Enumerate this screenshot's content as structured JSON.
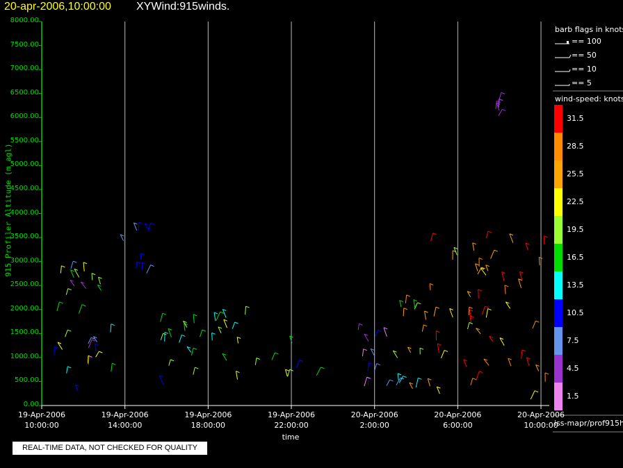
{
  "header": {
    "date_time": "20-apr-2006,10:00:00",
    "product": "XYWind:915winds."
  },
  "notice": "REAL-TIME DATA, NOT CHECKED FOR QUALITY",
  "legend": {
    "flags_title": "barb flags in knots",
    "flags": [
      "== 100",
      "== 50",
      "== 10",
      "== 5"
    ],
    "speed_title": "wind-speed: knots",
    "speed_colors": [
      "#ee82ee",
      "#9a32cd",
      "#6495ed",
      "#0000ff",
      "#00ffff",
      "#00dd00",
      "#9aff32",
      "#ffff00",
      "#ffa500",
      "#ff8c00",
      "#ff0000"
    ],
    "speed_labels": [
      "1.5",
      "4.5",
      "7.5",
      "10.5",
      "13.5",
      "16.5",
      "19.5",
      "22.5",
      "25.5",
      "28.5",
      "31.5"
    ],
    "source": "iss-mapr/prof915h"
  },
  "chart_data": {
    "type": "scatter",
    "title": "",
    "xlabel": "time",
    "ylabel": "915 Profiler Altitude (m agl)",
    "yticks": [
      "0.00",
      "500.00",
      "1000.00",
      "1500.00",
      "2000.00",
      "2500.00",
      "3000.00",
      "3500.00",
      "4000.00",
      "4500.00",
      "5000.00",
      "5500.00",
      "6000.00",
      "6500.00",
      "7000.00",
      "7500.00",
      "8000.00"
    ],
    "ylim": [
      0,
      8000
    ],
    "xlim_hours": [
      0,
      24.4
    ],
    "xticks": [
      {
        "date": "19-Apr-2006",
        "time": "10:00:00",
        "hour": 0
      },
      {
        "date": "19-Apr-2006",
        "time": "14:00:00",
        "hour": 4
      },
      {
        "date": "19-Apr-2006",
        "time": "18:00:00",
        "hour": 8
      },
      {
        "date": "19-Apr-2006",
        "time": "22:00:00",
        "hour": 12
      },
      {
        "date": "20-Apr-2006",
        "time": "2:00:00",
        "hour": 16
      },
      {
        "date": "20-Apr-2006",
        "time": "6:00:00",
        "hour": 20
      },
      {
        "date": "20-Apr-2006",
        "time": "10:00:00",
        "hour": 24
      }
    ],
    "grid": "vertical",
    "clusters": [
      {
        "t_start": 0.1,
        "t_end": 3.5,
        "alt_min": 150,
        "alt_max": 2900,
        "speed_min": 3,
        "speed_max": 24
      },
      {
        "t_start": 3.9,
        "t_end": 5.2,
        "alt_min": 2600,
        "alt_max": 3800,
        "speed_min": 7,
        "speed_max": 12
      },
      {
        "t_start": 5.5,
        "t_end": 13.3,
        "alt_min": 400,
        "alt_max": 1900,
        "speed_min": 10,
        "speed_max": 24
      },
      {
        "t_start": 15.1,
        "t_end": 17.2,
        "alt_min": 300,
        "alt_max": 1600,
        "speed_min": 2,
        "speed_max": 12
      },
      {
        "t_start": 17.1,
        "t_end": 18.7,
        "alt_min": 200,
        "alt_max": 2400,
        "speed_min": 12,
        "speed_max": 30
      },
      {
        "t_start": 18.4,
        "t_end": 24.3,
        "alt_min": 100,
        "alt_max": 3500,
        "speed_min": 20,
        "speed_max": 33
      },
      {
        "t_start": 21.8,
        "t_end": 22.0,
        "alt_min": 6000,
        "alt_max": 6500,
        "speed_min": 3,
        "speed_max": 5
      }
    ]
  }
}
